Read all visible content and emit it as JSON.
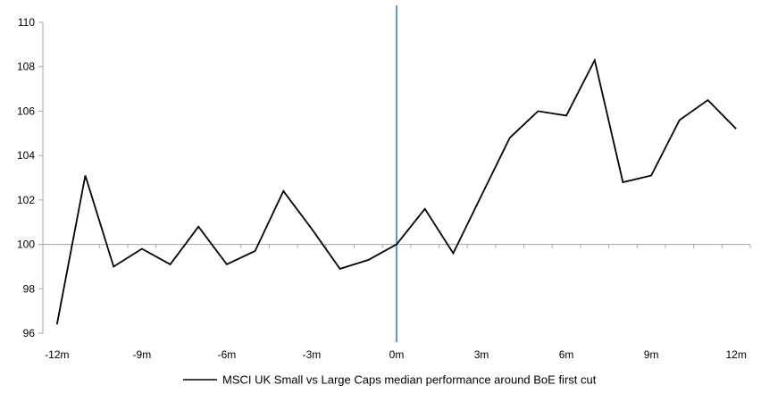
{
  "chart_data": {
    "type": "line",
    "title": "",
    "x": [
      -12,
      -11,
      -10,
      -9,
      -8,
      -7,
      -6,
      -5,
      -4,
      -3,
      -2,
      -1,
      0,
      1,
      2,
      3,
      4,
      5,
      6,
      7,
      8,
      9,
      10,
      11,
      12
    ],
    "series": [
      {
        "name": "MSCI UK Small vs Large Caps median performance around BoE first cut",
        "color": "#000000",
        "values": [
          96.4,
          103.1,
          99.0,
          99.8,
          99.1,
          100.8,
          99.1,
          99.7,
          102.4,
          100.7,
          98.9,
          99.3,
          100.0,
          101.6,
          99.6,
          102.2,
          104.8,
          106.0,
          105.8,
          108.3,
          102.8,
          103.1,
          105.6,
          106.5,
          105.2
        ]
      }
    ],
    "xlabel": "",
    "ylabel": "",
    "xlim": [
      -12.5,
      12.5
    ],
    "ylim": [
      96,
      110
    ],
    "y_ticks": [
      96,
      98,
      100,
      102,
      104,
      106,
      108,
      110
    ],
    "x_tick_positions": [
      -12,
      -9,
      -6,
      -3,
      0,
      3,
      6,
      9,
      12
    ],
    "x_tick_labels": [
      "-12m",
      "-9m",
      "-6m",
      "-3m",
      "0m",
      "3m",
      "6m",
      "9m",
      "12m"
    ],
    "baseline_value": 100,
    "event_line_x": 0,
    "grid": "off",
    "legend_position": "bottom"
  },
  "colors": {
    "series_line": "#000000",
    "event_line": "#5B9BD5",
    "baseline_line": "#A6A6A6",
    "axis_line": "#A6A6A6",
    "tick_color": "#A6A6A6",
    "label_text": "#000000"
  },
  "legend": {
    "label": "MSCI UK Small vs Large Caps median performance around BoE first cut"
  }
}
